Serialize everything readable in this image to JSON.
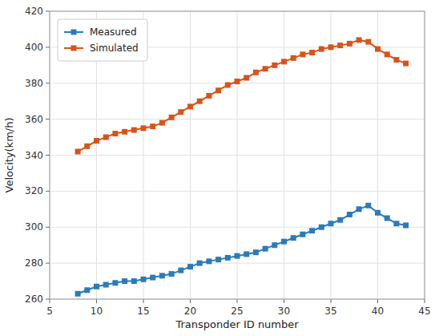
{
  "chart_data": {
    "type": "line",
    "xlabel": "Transponder ID number",
    "ylabel": "Velocity(km/h)",
    "x": [
      8,
      9,
      10,
      11,
      12,
      13,
      14,
      15,
      16,
      17,
      18,
      19,
      20,
      21,
      22,
      23,
      24,
      25,
      26,
      27,
      28,
      29,
      30,
      31,
      32,
      33,
      34,
      35,
      36,
      37,
      38,
      39,
      40,
      41,
      42,
      43
    ],
    "series": [
      {
        "name": "Measured",
        "color": "#2b7bba",
        "marker": "square",
        "line_style": "solid",
        "values": [
          263,
          265,
          267,
          268,
          269,
          270,
          270,
          271,
          272,
          273,
          274,
          276,
          278,
          280,
          281,
          282,
          283,
          284,
          285,
          286,
          288,
          290,
          292,
          294,
          296,
          298,
          300,
          302,
          304,
          307,
          310,
          312,
          308,
          305,
          302,
          301
        ]
      },
      {
        "name": "Simulated",
        "color": "#d95319",
        "marker": "square",
        "line_style": "solid",
        "values": [
          342,
          345,
          348,
          350,
          352,
          353,
          354,
          355,
          356,
          358,
          361,
          364,
          367,
          370,
          373,
          376,
          379,
          381,
          383,
          386,
          388,
          390,
          392,
          394,
          396,
          397,
          399,
          400,
          401,
          402,
          404,
          403,
          399,
          396,
          393,
          391
        ]
      }
    ],
    "xlim": [
      5,
      45
    ],
    "ylim": [
      260,
      420
    ],
    "xticks": [
      5,
      10,
      15,
      20,
      25,
      30,
      35,
      40,
      45
    ],
    "yticks": [
      260,
      280,
      300,
      320,
      340,
      360,
      380,
      400,
      420
    ],
    "grid": true,
    "legend": "upper left"
  }
}
